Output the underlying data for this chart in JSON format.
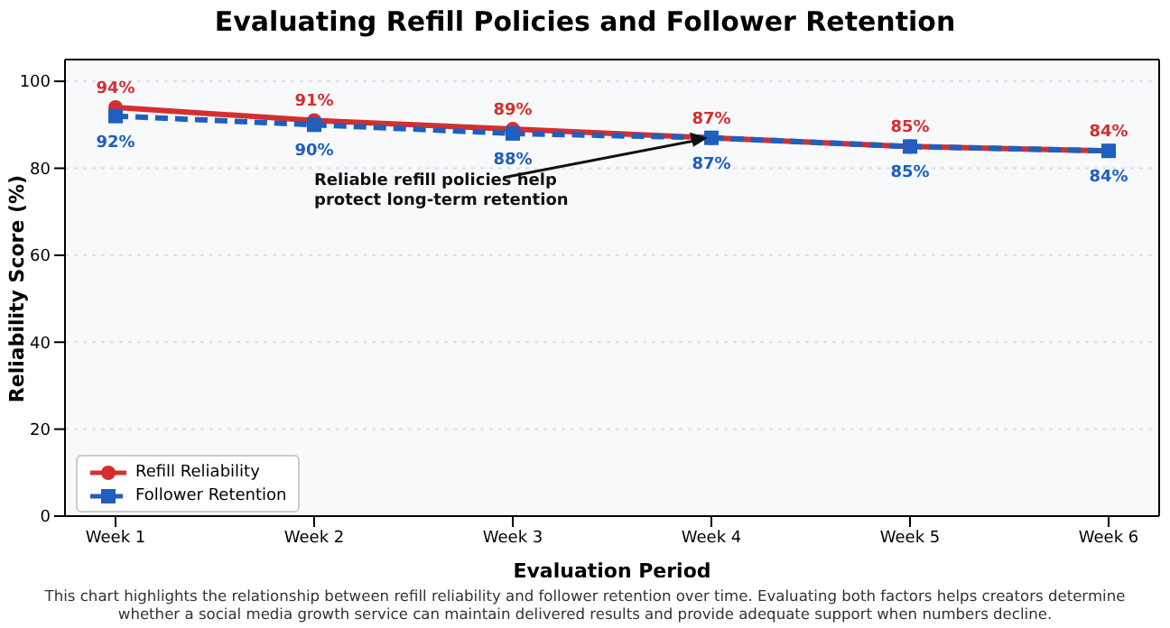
{
  "chart_data": {
    "type": "line",
    "title": "Evaluating Refill Policies and Follower Retention",
    "xlabel": "Evaluation Period",
    "ylabel": "Reliability Score (%)",
    "categories": [
      "Week 1",
      "Week 2",
      "Week 3",
      "Week 4",
      "Week 5",
      "Week 6"
    ],
    "series": [
      {
        "name": "Refill Reliability",
        "color": "#d32f2f",
        "values": [
          94,
          91,
          89,
          87,
          85,
          84
        ],
        "value_labels": [
          "94%",
          "91%",
          "89%",
          "87%",
          "85%",
          "84%"
        ],
        "marker": "circle",
        "line_style": "solid"
      },
      {
        "name": "Follower Retention",
        "color": "#1e5fbf",
        "values": [
          92,
          90,
          88,
          87,
          85,
          84
        ],
        "value_labels": [
          "92%",
          "90%",
          "88%",
          "87%",
          "85%",
          "84%"
        ],
        "marker": "square",
        "line_style": "dashed"
      }
    ],
    "ylim": [
      0,
      105
    ],
    "yticks": [
      0,
      20,
      40,
      60,
      80,
      100
    ],
    "grid": "y",
    "legend": "bottom left",
    "annotations": [
      {
        "text": "Reliable refill policies help\nprotect long-term retention",
        "x": "Week 4",
        "y": 87
      },
      "This chart highlights the relationship between refill reliability and follower retention over time. Evaluating both factors helps creators determine whether a social media growth service can maintain delivered results and provide adequate support when numbers decline."
    ]
  }
}
